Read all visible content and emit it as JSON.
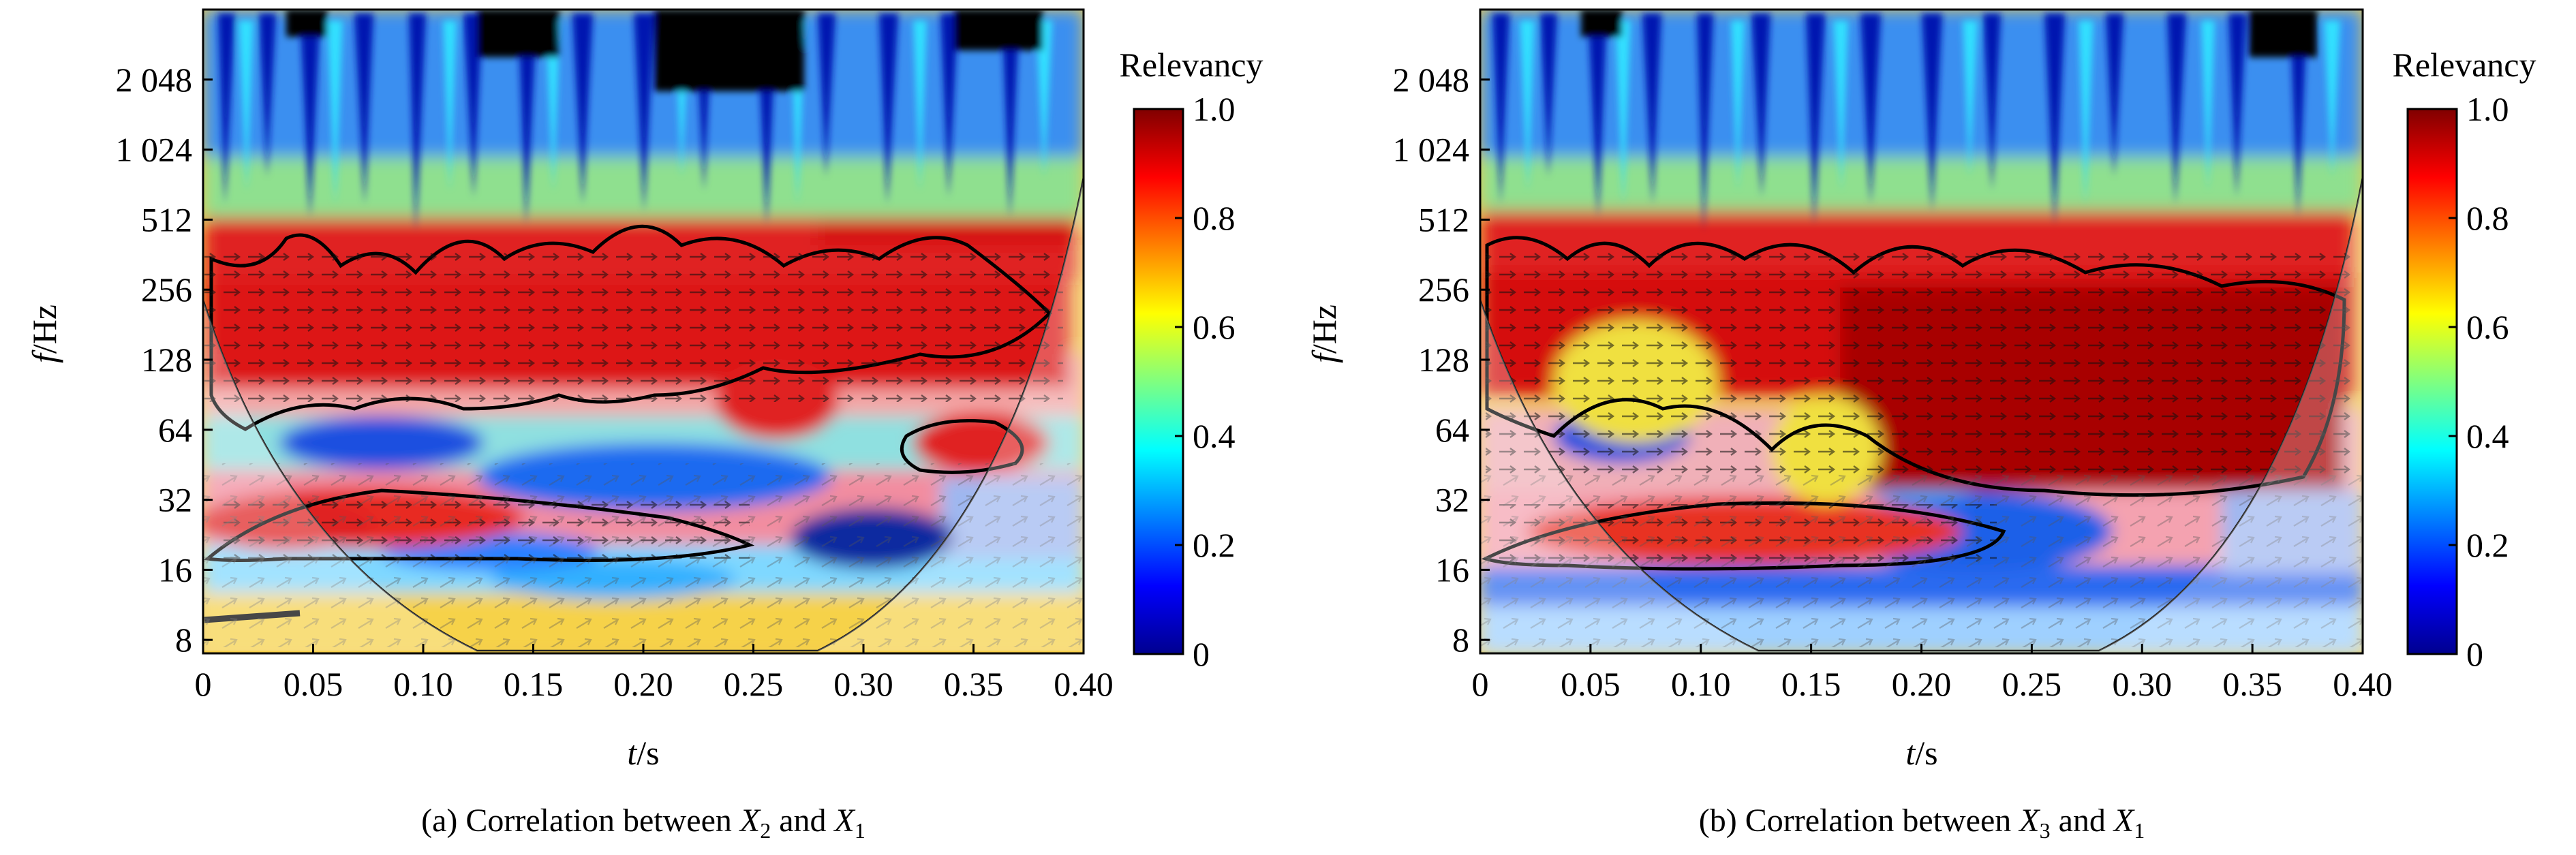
{
  "figure": {
    "panels": [
      {
        "caption": {
          "prefix": "(a) Correlation between ",
          "var1": "X",
          "sub1": "2",
          "mid": " and ",
          "var2": "X",
          "sub2": "1"
        }
      },
      {
        "caption": {
          "prefix": "(b) Correlation between ",
          "var1": "X",
          "sub1": "3",
          "mid": " and ",
          "var2": "X",
          "sub2": "1"
        }
      }
    ]
  },
  "chart_data": [
    {
      "type": "heatmap",
      "subtype": "wavelet-coherence",
      "xlabel_var": "t",
      "xlabel_unit": "/s",
      "ylabel_var": "f",
      "ylabel_unit": "/Hz",
      "xlim": [
        0,
        0.4
      ],
      "ylim": [
        7,
        4096
      ],
      "yscale": "log2",
      "xticks": [
        0,
        0.05,
        0.1,
        0.15,
        0.2,
        0.25,
        0.3,
        0.35,
        0.4
      ],
      "xtick_labels": [
        "0",
        "0.05",
        "0.10",
        "0.15",
        "0.20",
        "0.25",
        "0.30",
        "0.35",
        "0.40"
      ],
      "yticks": [
        8,
        16,
        32,
        64,
        128,
        256,
        512,
        1024,
        2048
      ],
      "ytick_labels": [
        "8",
        "16",
        "32",
        "64",
        "128",
        "256",
        "512",
        "1 024",
        "2 048"
      ],
      "colorbar": {
        "title": "Relevancy",
        "range": [
          0,
          1.0
        ],
        "ticks": [
          0,
          0.2,
          0.4,
          0.6,
          0.8,
          1.0
        ],
        "tick_labels": [
          "0",
          "0.2",
          "0.4",
          "0.6",
          "0.8",
          "1.0"
        ]
      },
      "coherence_regions": [
        {
          "t_range": [
            0.0,
            0.4
          ],
          "f_range": [
            128,
            512
          ],
          "value": 0.92
        },
        {
          "t_range": [
            0.02,
            0.25
          ],
          "f_range": [
            18,
            40
          ],
          "value": 0.9
        },
        {
          "t_range": [
            0.31,
            0.37
          ],
          "f_range": [
            45,
            80
          ],
          "value": 0.9
        },
        {
          "t_range": [
            0.05,
            0.35
          ],
          "f_range": [
            16,
            64
          ],
          "value": 0.15
        },
        {
          "t_range": [
            0.0,
            0.4
          ],
          "f_range": [
            512,
            4096
          ],
          "value": 0.45
        }
      ],
      "colormap": "jet"
    },
    {
      "type": "heatmap",
      "subtype": "wavelet-coherence",
      "xlabel_var": "t",
      "xlabel_unit": "/s",
      "ylabel_var": "f",
      "ylabel_unit": "/Hz",
      "xlim": [
        0,
        0.4
      ],
      "ylim": [
        7,
        4096
      ],
      "yscale": "log2",
      "xticks": [
        0,
        0.05,
        0.1,
        0.15,
        0.2,
        0.25,
        0.3,
        0.35,
        0.4
      ],
      "xtick_labels": [
        "0",
        "0.05",
        "0.10",
        "0.15",
        "0.20",
        "0.25",
        "0.30",
        "0.35",
        "0.40"
      ],
      "yticks": [
        8,
        16,
        32,
        64,
        128,
        256,
        512,
        1024,
        2048
      ],
      "ytick_labels": [
        "8",
        "16",
        "32",
        "64",
        "128",
        "256",
        "512",
        "1 024",
        "2 048"
      ],
      "colorbar": {
        "title": "Relevancy",
        "range": [
          0,
          1.0
        ],
        "ticks": [
          0,
          0.2,
          0.4,
          0.6,
          0.8,
          1.0
        ],
        "tick_labels": [
          "0",
          "0.2",
          "0.4",
          "0.6",
          "0.8",
          "1.0"
        ]
      },
      "coherence_regions": [
        {
          "t_range": [
            0.0,
            0.4
          ],
          "f_range": [
            128,
            512
          ],
          "value": 0.92
        },
        {
          "t_range": [
            0.15,
            0.4
          ],
          "f_range": [
            30,
            128
          ],
          "value": 0.97
        },
        {
          "t_range": [
            0.0,
            0.24
          ],
          "f_range": [
            16,
            32
          ],
          "value": 0.9
        },
        {
          "t_range": [
            0.15,
            0.35
          ],
          "f_range": [
            10,
            30
          ],
          "value": 0.15
        },
        {
          "t_range": [
            0.0,
            0.4
          ],
          "f_range": [
            512,
            4096
          ],
          "value": 0.45
        }
      ],
      "colormap": "jet"
    }
  ]
}
